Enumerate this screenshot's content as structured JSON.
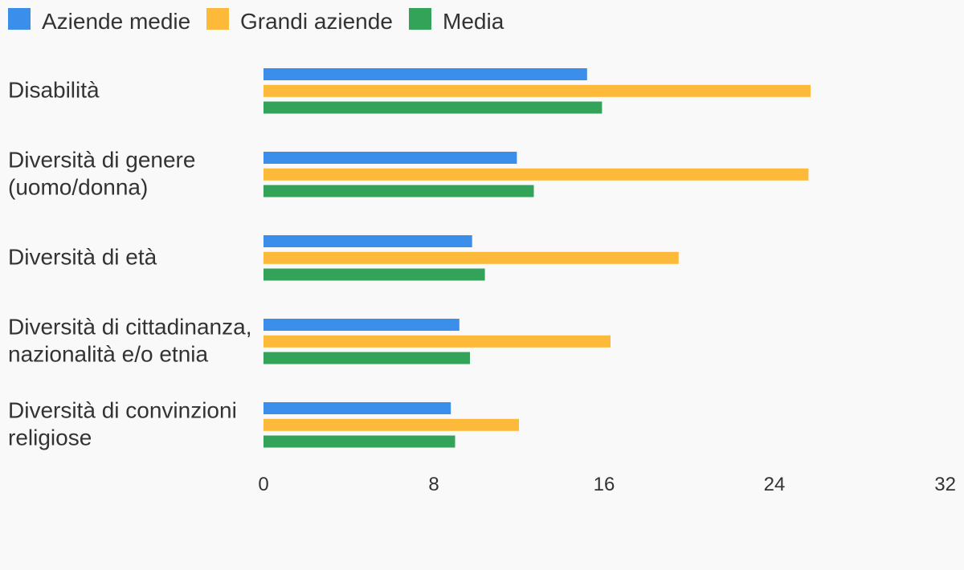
{
  "chart_data": {
    "type": "bar",
    "orientation": "horizontal",
    "categories": [
      [
        "Disabilità"
      ],
      [
        "Diversità di genere",
        "(uomo/donna)"
      ],
      [
        "Diversità di età"
      ],
      [
        "Diversità di cittadinanza,",
        "nazionalità e/o etnia"
      ],
      [
        "Diversità di convinzioni",
        "religiose"
      ]
    ],
    "series": [
      {
        "name": "Aziende medie",
        "color": "#3b8eea",
        "values": [
          15.2,
          11.9,
          9.8,
          9.2,
          8.8
        ]
      },
      {
        "name": "Grandi aziende",
        "color": "#fdb93a",
        "values": [
          25.7,
          25.6,
          19.5,
          16.3,
          12.0
        ]
      },
      {
        "name": "Media",
        "color": "#33a35a",
        "values": [
          15.9,
          12.7,
          10.4,
          9.7,
          9.0
        ]
      }
    ],
    "xlim": [
      0,
      32
    ],
    "xticks": [
      "0",
      "8",
      "16",
      "24",
      "32"
    ],
    "legend": "top-left",
    "grid": false
  }
}
